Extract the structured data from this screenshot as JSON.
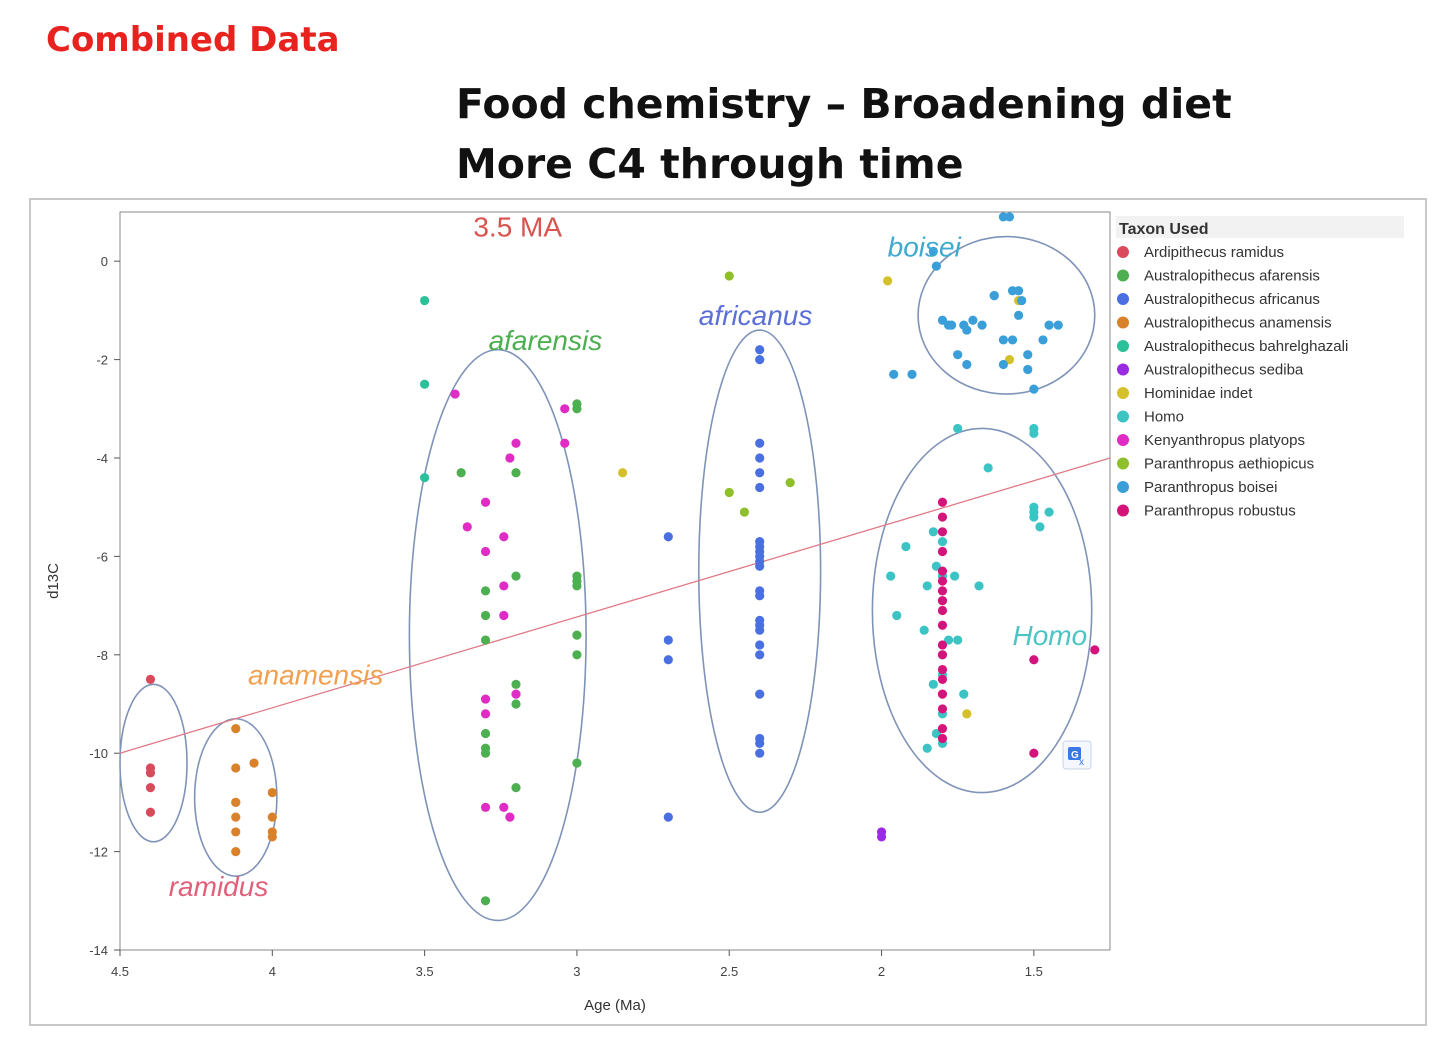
{
  "slide": {
    "label": "Combined Data",
    "title_line1": "Food chemistry – Broadening diet",
    "title_line2": "More C4 through time"
  },
  "chart_data": {
    "type": "scatter",
    "xlabel": "Age (Ma)",
    "ylabel": "d13C",
    "xlim": [
      4.5,
      1.25
    ],
    "ylim": [
      -14,
      1
    ],
    "x_ticks": [
      "4.5",
      "4",
      "3.5",
      "3",
      "2.5",
      "2",
      "1.5"
    ],
    "x_tick_values": [
      4.5,
      4,
      3.5,
      3,
      2.5,
      2,
      1.5
    ],
    "y_ticks": [
      "0",
      "-2",
      "-4",
      "-6",
      "-8",
      "-10",
      "-12",
      "-14"
    ],
    "y_tick_values": [
      0,
      -2,
      -4,
      -6,
      -8,
      -10,
      -12,
      -14
    ],
    "legend_title": "Taxon Used",
    "trend_line": {
      "x": [
        4.5,
        1.25
      ],
      "y": [
        -10.0,
        -4.0
      ]
    },
    "annotations": [
      {
        "text": "3.5 MA",
        "x": 3.34,
        "y": 0.5,
        "color": "#d9534f",
        "italic": false
      },
      {
        "text": "afarensis",
        "x": 3.29,
        "y": -1.8,
        "color": "#4caf50",
        "italic": true
      },
      {
        "text": "africanus",
        "x": 2.6,
        "y": -1.3,
        "color": "#5b6fd6",
        "italic": true
      },
      {
        "text": "boisei",
        "x": 1.98,
        "y": 0.1,
        "color": "#40a9d0",
        "italic": true
      },
      {
        "text": "anamensis",
        "x": 4.08,
        "y": -8.6,
        "color": "#f0a050",
        "italic": true
      },
      {
        "text": "ramidus",
        "x": 4.34,
        "y": -12.9,
        "color": "#e0607a",
        "italic": true
      },
      {
        "text": "Homo",
        "x": 1.57,
        "y": -7.8,
        "color": "#4cc4c4",
        "italic": true
      }
    ],
    "ellipses": [
      {
        "cx": 4.39,
        "cy": -10.2,
        "rx": 0.11,
        "ry": 1.6
      },
      {
        "cx": 4.12,
        "cy": -10.9,
        "rx": 0.135,
        "ry": 1.6
      },
      {
        "cx": 3.26,
        "cy": -7.6,
        "rx": 0.29,
        "ry": 5.8
      },
      {
        "cx": 2.4,
        "cy": -6.3,
        "rx": 0.2,
        "ry": 4.9
      },
      {
        "cx": 1.59,
        "cy": -1.1,
        "rx": 0.29,
        "ry": 1.6
      },
      {
        "cx": 1.67,
        "cy": -7.1,
        "rx": 0.36,
        "ry": 3.7
      }
    ],
    "series": [
      {
        "name": "Ardipithecus ramidus",
        "color": "#d94a5c",
        "x": [
          4.4,
          4.4,
          4.4,
          4.4,
          4.4
        ],
        "y": [
          -8.5,
          -10.3,
          -10.4,
          -10.7,
          -11.2
        ]
      },
      {
        "name": "Australopithecus afarensis",
        "color": "#4caf50",
        "x": [
          3.38,
          3.3,
          3.3,
          3.3,
          3.3,
          3.3,
          3.3,
          3.3,
          3.2,
          3.2,
          3.2,
          3.2,
          3.2,
          3.0,
          3.0,
          3.0,
          3.0,
          3.0,
          3.0,
          3.0,
          3.0
        ],
        "y": [
          -4.3,
          -6.7,
          -7.2,
          -7.7,
          -9.6,
          -9.9,
          -10.0,
          -13.0,
          -4.3,
          -6.4,
          -8.6,
          -10.7,
          -9.0,
          -2.9,
          -6.4,
          -6.6,
          -7.6,
          -8.0,
          -10.2,
          -3.0,
          -6.5
        ]
      },
      {
        "name": "Australopithecus africanus",
        "color": "#4a6fe0",
        "x": [
          2.7,
          2.7,
          2.7,
          2.7,
          2.4,
          2.4,
          2.4,
          2.4,
          2.4,
          2.4,
          2.4,
          2.4,
          2.4,
          2.4,
          2.4,
          2.4,
          2.4,
          2.4,
          2.4,
          2.4,
          2.4,
          2.4,
          2.4,
          2.4,
          2.4,
          2.4,
          2.4
        ],
        "y": [
          -5.6,
          -7.7,
          -8.1,
          -11.3,
          -1.8,
          -2.0,
          -3.7,
          -4.0,
          -4.3,
          -4.6,
          -5.7,
          -5.9,
          -6.0,
          -6.2,
          -6.7,
          -6.8,
          -7.3,
          -7.4,
          -7.8,
          -8.0,
          -8.8,
          -9.7,
          -10.0,
          -5.8,
          -6.1,
          -7.5,
          -9.8
        ]
      },
      {
        "name": "Australopithecus anamensis",
        "color": "#d9822b",
        "x": [
          4.12,
          4.12,
          4.12,
          4.12,
          4.12,
          4.12,
          4.12,
          4.06,
          4.0,
          4.0,
          4.0,
          4.0
        ],
        "y": [
          -9.5,
          -10.3,
          -11.0,
          -11.3,
          -11.6,
          -12.0,
          -11.0,
          -10.2,
          -10.8,
          -11.3,
          -11.6,
          -11.7
        ]
      },
      {
        "name": "Australopithecus bahrelghazali",
        "color": "#2bbf9a",
        "x": [
          3.5,
          3.5,
          3.5
        ],
        "y": [
          -0.8,
          -2.5,
          -4.4
        ]
      },
      {
        "name": "Australopithecus sediba",
        "color": "#9b2be0",
        "x": [
          2.0,
          2.0
        ],
        "y": [
          -11.6,
          -11.7
        ]
      },
      {
        "name": "Hominidae indet",
        "color": "#d4c02b",
        "x": [
          2.85,
          1.98,
          1.72,
          1.58,
          1.55
        ],
        "y": [
          -4.3,
          -0.4,
          -9.2,
          -2.0,
          -0.8
        ]
      },
      {
        "name": "Homo",
        "color": "#3cc4c4",
        "x": [
          1.97,
          1.95,
          1.92,
          1.86,
          1.83,
          1.83,
          1.82,
          1.8,
          1.8,
          1.8,
          1.8,
          1.8,
          1.8,
          1.8,
          1.76,
          1.73,
          1.75,
          1.65,
          1.68,
          1.5,
          1.5,
          1.48,
          1.5,
          1.45,
          1.5,
          1.5,
          1.78,
          1.85,
          1.85,
          1.82,
          1.75
        ],
        "y": [
          -6.4,
          -7.2,
          -5.8,
          -7.5,
          -5.5,
          -8.6,
          -6.2,
          -6.4,
          -8.0,
          -8.4,
          -9.2,
          -9.8,
          -6.9,
          -5.7,
          -6.4,
          -8.8,
          -7.7,
          -4.2,
          -6.6,
          -5.0,
          -5.2,
          -5.4,
          -5.1,
          -5.1,
          -3.4,
          -3.5,
          -7.7,
          -9.9,
          -6.6,
          -9.6,
          -3.4
        ]
      },
      {
        "name": "Kenyanthropus platyops",
        "color": "#e02bc4",
        "x": [
          3.4,
          3.36,
          3.3,
          3.3,
          3.3,
          3.3,
          3.3,
          3.24,
          3.24,
          3.24,
          3.24,
          3.22,
          3.2,
          3.2,
          3.04,
          3.04,
          3.22
        ],
        "y": [
          -2.7,
          -5.4,
          -4.9,
          -5.9,
          -8.9,
          -11.1,
          -9.2,
          -5.6,
          -6.6,
          -7.2,
          -11.1,
          -4.0,
          -3.7,
          -8.8,
          -3.0,
          -3.7,
          -11.3
        ]
      },
      {
        "name": "Paranthropus aethiopicus",
        "color": "#8fbf2b",
        "x": [
          2.5,
          2.5,
          2.45,
          2.3
        ],
        "y": [
          -0.3,
          -4.7,
          -5.1,
          -4.5
        ]
      },
      {
        "name": "Paranthropus boisei",
        "color": "#3a9fd9",
        "x": [
          1.83,
          1.8,
          1.77,
          1.7,
          1.73,
          1.63,
          1.57,
          1.55,
          1.54,
          1.47,
          1.82,
          1.78,
          1.72,
          1.6,
          1.57,
          1.52,
          1.6,
          1.58,
          1.55,
          1.9,
          1.96,
          1.75,
          1.72,
          1.6,
          1.67,
          1.63,
          1.52,
          1.5,
          1.45,
          1.42
        ],
        "y": [
          0.2,
          -1.2,
          -1.3,
          -1.2,
          -1.3,
          -0.7,
          -0.6,
          -1.1,
          -0.8,
          -1.6,
          -0.1,
          -1.3,
          -1.4,
          -1.6,
          -1.6,
          -1.9,
          0.9,
          0.9,
          -0.6,
          -2.3,
          -2.3,
          -1.9,
          -2.1,
          -2.1,
          -1.3,
          -0.7,
          -2.2,
          -2.6,
          -1.3,
          -1.3
        ]
      },
      {
        "name": "Paranthropus robustus",
        "color": "#d4147a",
        "x": [
          1.8,
          1.8,
          1.8,
          1.8,
          1.8,
          1.8,
          1.8,
          1.8,
          1.8,
          1.8,
          1.8,
          1.8,
          1.8,
          1.8,
          1.8,
          1.8,
          1.8,
          1.8,
          1.5,
          1.5,
          1.3
        ],
        "y": [
          -4.9,
          -5.2,
          -5.5,
          -5.9,
          -6.3,
          -6.5,
          -6.7,
          -6.9,
          -7.1,
          -7.4,
          -7.8,
          -8.0,
          -8.3,
          -8.5,
          -8.8,
          -9.1,
          -9.5,
          -9.7,
          -8.1,
          -10.0,
          -7.9
        ]
      }
    ]
  }
}
